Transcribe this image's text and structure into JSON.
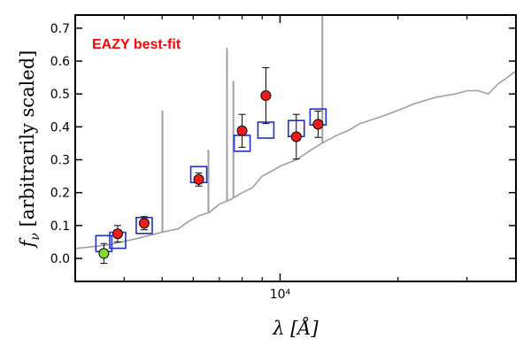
{
  "chart_data": {
    "type": "scatter",
    "title": "",
    "annotation": {
      "text": "EAZY best-fit",
      "color": "#ff0000"
    },
    "xlabel": "λ [Å]",
    "ylabel": "f_ν [arbitrarily scaled]",
    "ylabel_parts": {
      "symbol": "f",
      "subscript": "ν",
      "rest": " [arbitrarily scaled]"
    },
    "x_scale": "log",
    "xlim": [
      3000,
      40000
    ],
    "ylim": [
      -0.07,
      0.74
    ],
    "xticks": [
      {
        "value": 10000,
        "label": "10⁴"
      }
    ],
    "yticks": [
      0.0,
      0.1,
      0.2,
      0.3,
      0.4,
      0.5,
      0.6,
      0.7
    ],
    "ytick_labels": [
      "0.0",
      "0.1",
      "0.2",
      "0.3",
      "0.4",
      "0.5",
      "0.6",
      "0.7"
    ],
    "series": [
      {
        "role": "model_sed",
        "kind": "line",
        "color": "#a0a0a0",
        "x": [
          3000,
          3600,
          4300,
          5000,
          5500,
          5800,
          6200,
          6600,
          7000,
          7500,
          8000,
          8500,
          9000,
          9500,
          10000,
          11000,
          12000,
          13000,
          14000,
          15000,
          16000,
          17000,
          18000,
          20000,
          22000,
          25000,
          28000,
          30000,
          32000,
          34000,
          36000,
          38000,
          40000
        ],
        "y": [
          0.03,
          0.04,
          0.06,
          0.08,
          0.09,
          0.11,
          0.13,
          0.14,
          0.165,
          0.18,
          0.2,
          0.215,
          0.25,
          0.265,
          0.28,
          0.3,
          0.33,
          0.355,
          0.375,
          0.39,
          0.41,
          0.42,
          0.43,
          0.45,
          0.47,
          0.49,
          0.5,
          0.51,
          0.51,
          0.5,
          0.53,
          0.55,
          0.57
        ],
        "emission_lines": [
          {
            "x": 5008,
            "y": 0.45
          },
          {
            "x": 6563,
            "y": 0.33
          },
          {
            "x": 7320,
            "y": 0.64
          },
          {
            "x": 7600,
            "y": 0.54
          },
          {
            "x": 12820,
            "y": 0.74
          }
        ]
      },
      {
        "role": "model_photometry",
        "kind": "open_square",
        "color": "#1f2fd0",
        "x": [
          3550,
          3850,
          4500,
          6200,
          8000,
          9200,
          11000,
          12500
        ],
        "y": [
          0.045,
          0.055,
          0.1,
          0.255,
          0.35,
          0.39,
          0.395,
          0.43
        ]
      },
      {
        "role": "observed_photometry",
        "kind": "point_errorbar",
        "color": "#ee1c1c",
        "x": [
          3850,
          4500,
          6200,
          8000,
          9200,
          11000,
          12500
        ],
        "y": [
          0.075,
          0.107,
          0.24,
          0.388,
          0.495,
          0.37,
          0.408
        ],
        "yerr": [
          0.025,
          0.02,
          0.02,
          0.05,
          0.085,
          0.068,
          0.04
        ]
      },
      {
        "role": "observed_photometry_alt",
        "kind": "point_errorbar",
        "color": "#7cdc28",
        "x": [
          3550
        ],
        "y": [
          0.015
        ],
        "yerr": [
          0.03
        ]
      }
    ]
  }
}
